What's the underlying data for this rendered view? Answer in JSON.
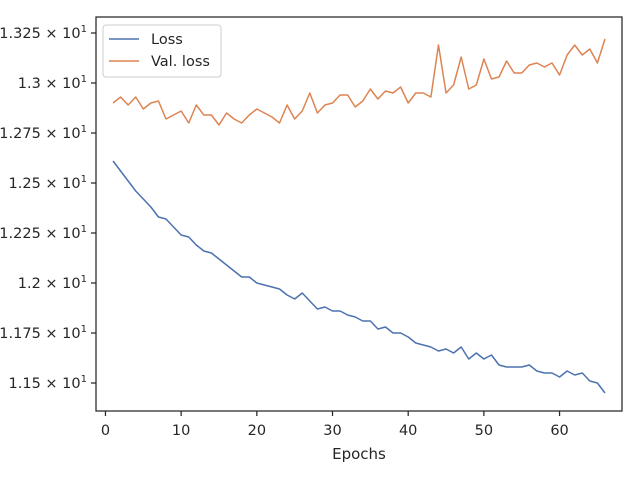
{
  "chart_data": {
    "type": "line",
    "xlabel": "Epochs",
    "ylabel": "",
    "xlim": [
      -1.25,
      68.25
    ],
    "ylim": [
      11.36,
      13.33
    ],
    "x_ticks": [
      0,
      10,
      20,
      30,
      40,
      50,
      60
    ],
    "y_ticks": [
      {
        "value": 11.5,
        "mantissa": "1.15",
        "exp": "1"
      },
      {
        "value": 11.75,
        "mantissa": "1.175",
        "exp": "1"
      },
      {
        "value": 12.0,
        "mantissa": "1.2",
        "exp": "1"
      },
      {
        "value": 12.25,
        "mantissa": "1.225",
        "exp": "1"
      },
      {
        "value": 12.5,
        "mantissa": "1.25",
        "exp": "1"
      },
      {
        "value": 12.75,
        "mantissa": "1.275",
        "exp": "1"
      },
      {
        "value": 13.0,
        "mantissa": "1.3",
        "exp": "1"
      },
      {
        "value": 13.25,
        "mantissa": "1.325",
        "exp": "1"
      }
    ],
    "tick_times": "×",
    "legend_position": "top-left",
    "grid": false,
    "x": [
      1,
      2,
      3,
      4,
      5,
      6,
      7,
      8,
      9,
      10,
      11,
      12,
      13,
      14,
      15,
      16,
      17,
      18,
      19,
      20,
      21,
      22,
      23,
      24,
      25,
      26,
      27,
      28,
      29,
      30,
      31,
      32,
      33,
      34,
      35,
      36,
      37,
      38,
      39,
      40,
      41,
      42,
      43,
      44,
      45,
      46,
      47,
      48,
      49,
      50,
      51,
      52,
      53,
      54,
      55,
      56,
      57,
      58,
      59,
      60,
      61,
      62,
      63,
      64,
      65,
      66
    ],
    "series": [
      {
        "name": "Loss",
        "color": "#4c72b0",
        "values": [
          12.61,
          12.56,
          12.51,
          12.46,
          12.42,
          12.38,
          12.33,
          12.32,
          12.28,
          12.24,
          12.23,
          12.19,
          12.16,
          12.15,
          12.12,
          12.09,
          12.06,
          12.03,
          12.03,
          12.0,
          11.99,
          11.98,
          11.97,
          11.94,
          11.92,
          11.95,
          11.91,
          11.87,
          11.88,
          11.86,
          11.86,
          11.84,
          11.83,
          11.81,
          11.81,
          11.77,
          11.78,
          11.75,
          11.75,
          11.73,
          11.7,
          11.69,
          11.68,
          11.66,
          11.67,
          11.65,
          11.68,
          11.62,
          11.65,
          11.62,
          11.64,
          11.59,
          11.58,
          11.58,
          11.58,
          11.59,
          11.56,
          11.55,
          11.55,
          11.53,
          11.56,
          11.54,
          11.55,
          11.51,
          11.5,
          11.45
        ]
      },
      {
        "name": "Val. loss",
        "color": "#dd8452",
        "values": [
          12.9,
          12.93,
          12.89,
          12.93,
          12.87,
          12.9,
          12.91,
          12.82,
          12.84,
          12.86,
          12.8,
          12.89,
          12.84,
          12.84,
          12.79,
          12.85,
          12.82,
          12.8,
          12.84,
          12.87,
          12.85,
          12.83,
          12.8,
          12.89,
          12.82,
          12.86,
          12.95,
          12.85,
          12.89,
          12.9,
          12.94,
          12.94,
          12.88,
          12.91,
          12.97,
          12.92,
          12.96,
          12.95,
          12.98,
          12.9,
          12.95,
          12.95,
          12.93,
          13.19,
          12.95,
          12.99,
          13.13,
          12.97,
          12.99,
          13.12,
          13.02,
          13.03,
          13.11,
          13.05,
          13.05,
          13.09,
          13.1,
          13.08,
          13.1,
          13.04,
          13.14,
          13.19,
          13.14,
          13.17,
          13.1,
          13.22
        ]
      }
    ]
  }
}
